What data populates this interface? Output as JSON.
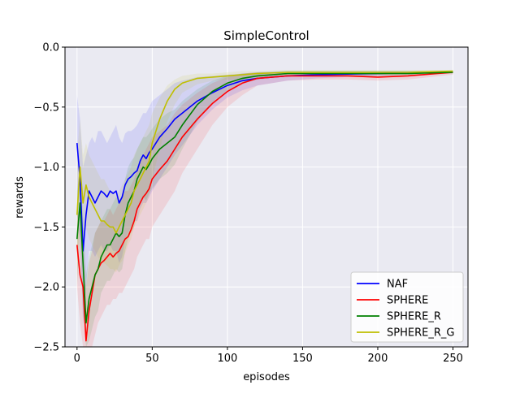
{
  "chart_data": {
    "type": "line",
    "title": "SimpleControl",
    "xlabel": "episodes",
    "ylabel": "rewards",
    "xlim": [
      -8,
      260
    ],
    "ylim": [
      -2.5,
      0.0
    ],
    "x_ticks": [
      0,
      50,
      100,
      150,
      200,
      250
    ],
    "x_tick_labels": [
      "0",
      "50",
      "100",
      "150",
      "200",
      "250"
    ],
    "y_ticks": [
      -2.5,
      -2.0,
      -1.5,
      -1.0,
      -0.5,
      0.0
    ],
    "y_tick_labels": [
      "−2.5",
      "−2.0",
      "−1.5",
      "−1.0",
      "−0.5",
      "0.0"
    ],
    "grid": true,
    "background_color": "#eaeaf2",
    "legend_position": "lower right",
    "series": [
      {
        "name": "NAF",
        "color": "#0000ff",
        "x": [
          0,
          2,
          4,
          6,
          8,
          10,
          12,
          14,
          16,
          18,
          20,
          22,
          24,
          26,
          28,
          30,
          32,
          34,
          36,
          38,
          40,
          42,
          44,
          46,
          48,
          50,
          55,
          60,
          65,
          70,
          80,
          90,
          100,
          110,
          120,
          140,
          160,
          180,
          200,
          220,
          250
        ],
        "y": [
          -0.8,
          -1.1,
          -1.7,
          -1.4,
          -1.2,
          -1.25,
          -1.3,
          -1.25,
          -1.2,
          -1.22,
          -1.25,
          -1.2,
          -1.22,
          -1.2,
          -1.3,
          -1.25,
          -1.15,
          -1.1,
          -1.08,
          -1.05,
          -1.03,
          -0.95,
          -0.9,
          -0.93,
          -0.88,
          -0.85,
          -0.75,
          -0.68,
          -0.6,
          -0.55,
          -0.45,
          -0.38,
          -0.32,
          -0.28,
          -0.26,
          -0.24,
          -0.23,
          -0.225,
          -0.22,
          -0.215,
          -0.21
        ],
        "upper": [
          -0.4,
          -0.6,
          -1.0,
          -0.9,
          -0.8,
          -0.75,
          -0.8,
          -0.7,
          -0.7,
          -0.75,
          -0.8,
          -0.75,
          -0.7,
          -0.65,
          -0.75,
          -0.8,
          -0.72,
          -0.7,
          -0.7,
          -0.68,
          -0.65,
          -0.6,
          -0.55,
          -0.55,
          -0.5,
          -0.45,
          -0.4,
          -0.35,
          -0.3,
          -0.28,
          -0.25,
          -0.24,
          -0.23,
          -0.22,
          -0.21,
          -0.2,
          -0.2,
          -0.2,
          -0.2,
          -0.2,
          -0.2
        ],
        "lower": [
          -1.4,
          -1.6,
          -2.3,
          -2.0,
          -1.7,
          -1.7,
          -1.75,
          -1.7,
          -1.65,
          -1.7,
          -1.7,
          -1.65,
          -1.7,
          -1.7,
          -1.8,
          -1.75,
          -1.6,
          -1.55,
          -1.5,
          -1.45,
          -1.45,
          -1.35,
          -1.3,
          -1.3,
          -1.25,
          -1.2,
          -1.1,
          -1.0,
          -0.9,
          -0.82,
          -0.65,
          -0.52,
          -0.42,
          -0.36,
          -0.32,
          -0.28,
          -0.26,
          -0.25,
          -0.24,
          -0.23,
          -0.22
        ]
      },
      {
        "name": "SPHERE",
        "color": "#ff0000",
        "x": [
          0,
          2,
          4,
          6,
          8,
          10,
          12,
          14,
          16,
          18,
          20,
          22,
          24,
          26,
          28,
          30,
          32,
          34,
          36,
          38,
          40,
          42,
          44,
          46,
          48,
          50,
          55,
          60,
          65,
          70,
          80,
          90,
          100,
          110,
          120,
          140,
          160,
          180,
          200,
          220,
          250
        ],
        "y": [
          -1.65,
          -1.9,
          -2.0,
          -2.45,
          -2.2,
          -2.05,
          -1.9,
          -1.85,
          -1.8,
          -1.78,
          -1.75,
          -1.72,
          -1.75,
          -1.72,
          -1.7,
          -1.65,
          -1.6,
          -1.58,
          -1.52,
          -1.45,
          -1.35,
          -1.3,
          -1.25,
          -1.22,
          -1.18,
          -1.1,
          -1.02,
          -0.95,
          -0.85,
          -0.75,
          -0.6,
          -0.47,
          -0.37,
          -0.3,
          -0.26,
          -0.24,
          -0.24,
          -0.24,
          -0.25,
          -0.24,
          -0.21
        ],
        "upper": [
          -1.3,
          -1.5,
          -1.6,
          -2.0,
          -1.8,
          -1.7,
          -1.55,
          -1.5,
          -1.45,
          -1.45,
          -1.4,
          -1.35,
          -1.4,
          -1.35,
          -1.3,
          -1.25,
          -1.2,
          -1.2,
          -1.15,
          -1.1,
          -1.0,
          -0.95,
          -0.9,
          -0.85,
          -0.8,
          -0.75,
          -0.7,
          -0.65,
          -0.55,
          -0.48,
          -0.38,
          -0.3,
          -0.25,
          -0.22,
          -0.21,
          -0.21,
          -0.21,
          -0.21,
          -0.22,
          -0.22,
          -0.2
        ],
        "lower": [
          -2.0,
          -2.3,
          -2.5,
          -2.5,
          -2.5,
          -2.5,
          -2.4,
          -2.3,
          -2.25,
          -2.2,
          -2.15,
          -2.15,
          -2.1,
          -2.1,
          -2.05,
          -2.05,
          -2.0,
          -1.95,
          -1.9,
          -1.85,
          -1.75,
          -1.7,
          -1.65,
          -1.6,
          -1.6,
          -1.5,
          -1.4,
          -1.3,
          -1.2,
          -1.05,
          -0.85,
          -0.65,
          -0.5,
          -0.4,
          -0.32,
          -0.28,
          -0.27,
          -0.27,
          -0.28,
          -0.27,
          -0.23
        ]
      },
      {
        "name": "SPHERE_R",
        "color": "#008000",
        "x": [
          0,
          2,
          4,
          6,
          8,
          10,
          12,
          14,
          16,
          18,
          20,
          22,
          24,
          26,
          28,
          30,
          32,
          34,
          36,
          38,
          40,
          42,
          44,
          46,
          48,
          50,
          55,
          60,
          65,
          70,
          80,
          90,
          100,
          110,
          120,
          140,
          160,
          180,
          200,
          220,
          250
        ],
        "y": [
          -1.6,
          -1.3,
          -1.8,
          -2.3,
          -2.1,
          -2.0,
          -1.9,
          -1.85,
          -1.75,
          -1.7,
          -1.65,
          -1.65,
          -1.6,
          -1.55,
          -1.58,
          -1.55,
          -1.4,
          -1.3,
          -1.25,
          -1.2,
          -1.1,
          -1.05,
          -1.0,
          -1.02,
          -0.98,
          -0.93,
          -0.85,
          -0.8,
          -0.75,
          -0.65,
          -0.48,
          -0.37,
          -0.3,
          -0.26,
          -0.24,
          -0.22,
          -0.22,
          -0.22,
          -0.22,
          -0.22,
          -0.21
        ],
        "upper": [
          -1.2,
          -1.0,
          -1.4,
          -1.9,
          -1.75,
          -1.65,
          -1.55,
          -1.5,
          -1.45,
          -1.4,
          -1.35,
          -1.35,
          -1.3,
          -1.25,
          -1.28,
          -1.25,
          -1.1,
          -1.0,
          -0.95,
          -0.92,
          -0.85,
          -0.8,
          -0.75,
          -0.75,
          -0.72,
          -0.68,
          -0.6,
          -0.55,
          -0.52,
          -0.45,
          -0.35,
          -0.28,
          -0.24,
          -0.22,
          -0.21,
          -0.2,
          -0.2,
          -0.2,
          -0.2,
          -0.2,
          -0.2
        ],
        "lower": [
          -2.0,
          -1.6,
          -2.2,
          -2.5,
          -2.45,
          -2.35,
          -2.25,
          -2.2,
          -2.05,
          -2.0,
          -1.95,
          -1.95,
          -1.9,
          -1.85,
          -1.88,
          -1.85,
          -1.7,
          -1.6,
          -1.55,
          -1.5,
          -1.35,
          -1.3,
          -1.25,
          -1.28,
          -1.22,
          -1.18,
          -1.1,
          -1.05,
          -0.98,
          -0.85,
          -0.62,
          -0.46,
          -0.36,
          -0.3,
          -0.27,
          -0.24,
          -0.24,
          -0.24,
          -0.24,
          -0.24,
          -0.22
        ]
      },
      {
        "name": "SPHERE_R_G",
        "color": "#bfbf00",
        "x": [
          0,
          2,
          4,
          6,
          8,
          10,
          12,
          14,
          16,
          18,
          20,
          22,
          24,
          26,
          28,
          30,
          32,
          34,
          36,
          38,
          40,
          42,
          44,
          46,
          48,
          50,
          55,
          60,
          65,
          70,
          80,
          90,
          100,
          110,
          120,
          140,
          160,
          180,
          200,
          220,
          250
        ],
        "y": [
          -1.4,
          -1.0,
          -1.3,
          -1.15,
          -1.25,
          -1.3,
          -1.35,
          -1.4,
          -1.45,
          -1.45,
          -1.48,
          -1.5,
          -1.5,
          -1.55,
          -1.5,
          -1.45,
          -1.4,
          -1.35,
          -1.3,
          -1.2,
          -1.15,
          -1.1,
          -1.05,
          -1.0,
          -0.95,
          -0.8,
          -0.6,
          -0.45,
          -0.35,
          -0.3,
          -0.26,
          -0.25,
          -0.24,
          -0.23,
          -0.22,
          -0.21,
          -0.21,
          -0.21,
          -0.21,
          -0.21,
          -0.2
        ],
        "upper": [
          -0.9,
          -0.6,
          -0.9,
          -0.8,
          -0.9,
          -0.95,
          -1.0,
          -1.05,
          -1.1,
          -1.1,
          -1.15,
          -1.2,
          -1.2,
          -1.25,
          -1.2,
          -1.15,
          -1.1,
          -1.05,
          -1.0,
          -0.9,
          -0.85,
          -0.8,
          -0.75,
          -0.7,
          -0.65,
          -0.55,
          -0.42,
          -0.32,
          -0.27,
          -0.24,
          -0.22,
          -0.22,
          -0.21,
          -0.2,
          -0.2,
          -0.19,
          -0.19,
          -0.19,
          -0.19,
          -0.19,
          -0.19
        ],
        "lower": [
          -1.9,
          -1.4,
          -1.7,
          -1.5,
          -1.6,
          -1.65,
          -1.7,
          -1.75,
          -1.8,
          -1.8,
          -1.82,
          -1.85,
          -1.85,
          -1.88,
          -1.82,
          -1.78,
          -1.72,
          -1.65,
          -1.6,
          -1.5,
          -1.45,
          -1.4,
          -1.35,
          -1.3,
          -1.25,
          -1.1,
          -0.85,
          -0.62,
          -0.48,
          -0.38,
          -0.31,
          -0.28,
          -0.27,
          -0.26,
          -0.24,
          -0.23,
          -0.23,
          -0.23,
          -0.23,
          -0.23,
          -0.22
        ]
      }
    ]
  }
}
